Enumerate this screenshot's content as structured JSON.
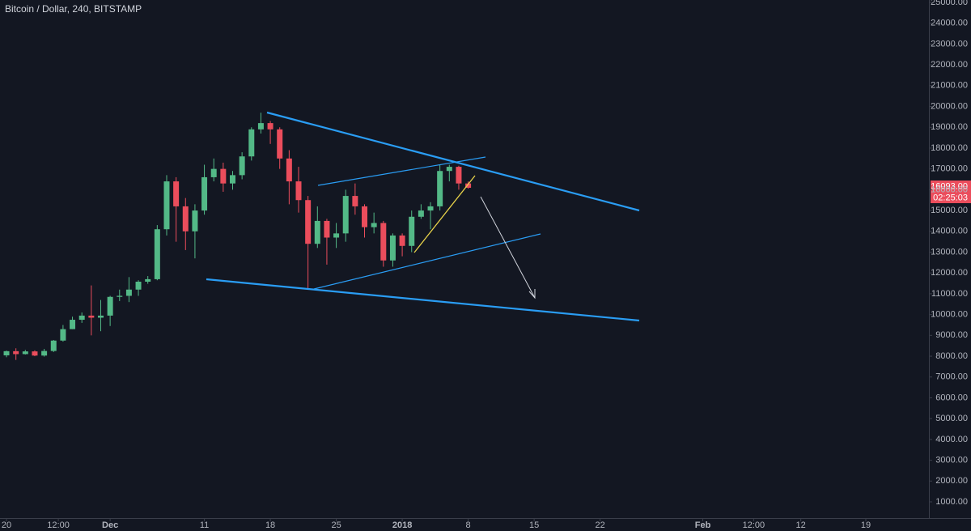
{
  "chart_data": {
    "type": "candlestick",
    "title": "Bitcoin / Dollar, 240, BITSTAMP",
    "price_label": "16093.00",
    "countdown": "02:25:03",
    "up_color": "#53b987",
    "down_color": "#eb4d5c",
    "candles": {
      "x": [
        0,
        1,
        2,
        3,
        4,
        5,
        6,
        7,
        8,
        9,
        10,
        11,
        12,
        13,
        14,
        15,
        16,
        17,
        18,
        19,
        20,
        21,
        22,
        23,
        24,
        25,
        26,
        27,
        28,
        29,
        30,
        31,
        32,
        33,
        34,
        35,
        36,
        37,
        38,
        39,
        40,
        41,
        42,
        43,
        44,
        45,
        46,
        47,
        48,
        49
      ],
      "open": [
        8040,
        8240,
        8100,
        8230,
        8030,
        8250,
        8750,
        9300,
        9750,
        9950,
        9850,
        9950,
        10850,
        10900,
        11200,
        11580,
        11700,
        14100,
        16400,
        15200,
        14000,
        15000,
        16600,
        17000,
        16300,
        16700,
        17600,
        18900,
        19200,
        18900,
        17500,
        16400,
        15500,
        13400,
        14500,
        13700,
        13900,
        15700,
        15200,
        14200,
        14400,
        12600,
        13800,
        13300,
        14700,
        15000,
        15200,
        16900,
        17100,
        16300
      ],
      "high": [
        8270,
        8380,
        8300,
        8280,
        8350,
        8780,
        9500,
        9900,
        10100,
        11400,
        10700,
        10900,
        11200,
        11800,
        11650,
        11850,
        14300,
        16700,
        16600,
        15600,
        15300,
        17200,
        17500,
        17300,
        16900,
        17800,
        19000,
        19700,
        19300,
        19000,
        17900,
        17100,
        15700,
        15200,
        14600,
        14400,
        16000,
        16300,
        15300,
        14900,
        14500,
        13900,
        13900,
        15000,
        15300,
        15400,
        17200,
        17200,
        17150,
        16400
      ],
      "low": [
        7950,
        7820,
        8080,
        8000,
        7980,
        8200,
        8700,
        9300,
        9600,
        9000,
        9200,
        9450,
        10650,
        10600,
        10900,
        11480,
        11650,
        13800,
        13500,
        13100,
        12700,
        14800,
        16400,
        15900,
        16000,
        16500,
        17400,
        18700,
        18200,
        17000,
        15300,
        14900,
        11200,
        13200,
        12400,
        13200,
        13500,
        14800,
        13700,
        13900,
        12300,
        12300,
        12800,
        13000,
        14600,
        14100,
        15000,
        16400,
        16000,
        16050
      ],
      "close": [
        8240,
        8100,
        8230,
        8030,
        8250,
        8750,
        9300,
        9750,
        9950,
        9850,
        9950,
        10850,
        10900,
        11200,
        11580,
        11700,
        14100,
        16400,
        15200,
        14000,
        15000,
        16600,
        17000,
        16300,
        16700,
        17600,
        18900,
        19200,
        18900,
        17500,
        16400,
        15500,
        13400,
        14500,
        13700,
        13900,
        15700,
        15200,
        14200,
        14400,
        12600,
        13800,
        13300,
        14700,
        15000,
        15200,
        16900,
        17100,
        16300,
        16093
      ]
    },
    "xlim": [
      -0.69,
      97.9
    ],
    "xticks": [
      {
        "value": 0,
        "label": "20"
      },
      {
        "value": 5.5,
        "label": "12:00"
      },
      {
        "value": 11,
        "label": "Dec"
      },
      {
        "value": 21,
        "label": "11"
      },
      {
        "value": 28,
        "label": "18"
      },
      {
        "value": 35,
        "label": "25"
      },
      {
        "value": 42,
        "label": "2018"
      },
      {
        "value": 49,
        "label": "8"
      },
      {
        "value": 56,
        "label": "15"
      },
      {
        "value": 63,
        "label": "22"
      },
      {
        "value": 73.9,
        "label": "Feb"
      },
      {
        "value": 79.3,
        "label": "12:00"
      },
      {
        "value": 84.3,
        "label": "12"
      },
      {
        "value": 91.2,
        "label": "19"
      }
    ],
    "ylim": [
      222,
      25116
    ],
    "yticks": [
      {
        "value": 1000,
        "label": "1000.00"
      },
      {
        "value": 2000,
        "label": "2000.00"
      },
      {
        "value": 3000,
        "label": "3000.00"
      },
      {
        "value": 4000,
        "label": "4000.00"
      },
      {
        "value": 5000,
        "label": "5000.00"
      },
      {
        "value": 6000,
        "label": "6000.00"
      },
      {
        "value": 7000,
        "label": "7000.00"
      },
      {
        "value": 8000,
        "label": "8000.00"
      },
      {
        "value": 9000,
        "label": "9000.00"
      },
      {
        "value": 10000,
        "label": "10000.00"
      },
      {
        "value": 11000,
        "label": "11000.00"
      },
      {
        "value": 12000,
        "label": "12000.00"
      },
      {
        "value": 13000,
        "label": "13000.00"
      },
      {
        "value": 14000,
        "label": "14000.00"
      },
      {
        "value": 15000,
        "label": "15000.00"
      },
      {
        "value": 16000,
        "label": "16000.00"
      },
      {
        "value": 17000,
        "label": "17000.00"
      },
      {
        "value": 18000,
        "label": "18000.00"
      },
      {
        "value": 19000,
        "label": "19000.00"
      },
      {
        "value": 20000,
        "label": "20000.00"
      },
      {
        "value": 21000,
        "label": "21000.00"
      },
      {
        "value": 22000,
        "label": "22000.00"
      },
      {
        "value": 23000,
        "label": "23000.00"
      },
      {
        "value": 24000,
        "label": "24000.00"
      },
      {
        "value": 25000,
        "label": "25000.00"
      }
    ],
    "grid": false
  }
}
